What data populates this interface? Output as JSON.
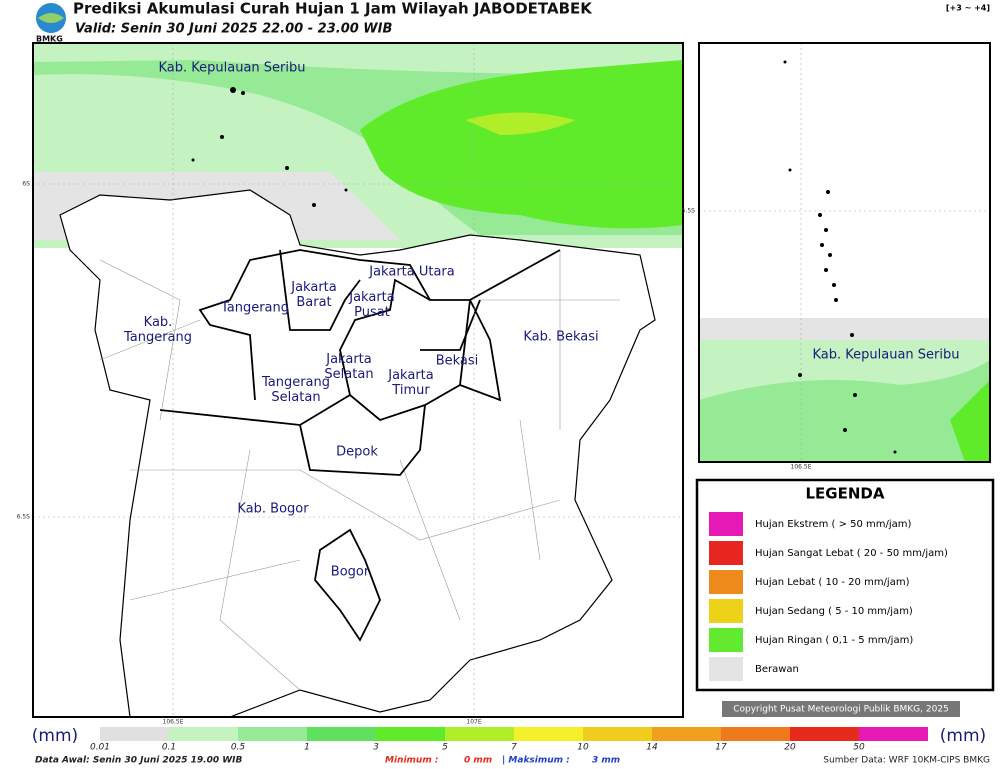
{
  "header": {
    "title": "Prediksi Akumulasi Curah Hujan 1 Jam Wilayah JABODETABEK",
    "subtitle": "Valid: Senin 30 Juni 2025 22.00 - 23.00 WIB",
    "lead_time": "[+3 ~ +4]",
    "logo_text": "BMKG"
  },
  "map": {
    "labels": [
      "Kab. Kepulauan Seribu",
      "Jakarta Utara",
      "Jakarta Barat",
      "Jakarta Pusat",
      "Tangerang",
      "Kab. Tangerang",
      "Jakarta Selatan",
      "Jakarta Timur",
      "Bekasi",
      "Kab. Bekasi",
      "Tangerang Selatan",
      "Depok",
      "Kab. Bogor",
      "Bogor"
    ],
    "axis_labels": [
      "6S",
      "6.5S",
      "106.5E",
      "107E"
    ]
  },
  "inset": {
    "labels": [
      "Kab. Kepulauan Seribu"
    ],
    "axis_labels": [
      "5.5S",
      "106.5E"
    ]
  },
  "legend": {
    "title": "LEGENDA",
    "items": [
      {
        "label": "Hujan Ekstrem ( > 50 mm/jam)",
        "color": "#e619b4"
      },
      {
        "label": "Hujan Sangat Lebat ( 20 - 50 mm/jam)",
        "color": "#e6261f"
      },
      {
        "label": "Hujan Lebat ( 10 - 20 mm/jam)",
        "color": "#ee8a1c"
      },
      {
        "label": "Hujan Sedang ( 5 - 10 mm/jam)",
        "color": "#eed21a"
      },
      {
        "label": "Hujan Ringan ( 0,1 - 5 mm/jam)",
        "color": "#62ea2e"
      },
      {
        "label": "Berawan",
        "color": "#e4e4e4"
      }
    ]
  },
  "copyright": "Copyright Pusat Meteorologi Publik BMKG, 2025",
  "colorbar": {
    "unit_left": "(mm)",
    "unit_right": "(mm)",
    "segments": [
      {
        "label": "0.01",
        "color": "#e0e0e0"
      },
      {
        "label": "0.1",
        "color": "#c4f2c0"
      },
      {
        "label": "0.5",
        "color": "#96ea96"
      },
      {
        "label": "1",
        "color": "#5fe05f"
      },
      {
        "label": "3",
        "color": "#5fea2a"
      },
      {
        "label": "5",
        "color": "#b0ee2a"
      },
      {
        "label": "7",
        "color": "#f4f02a"
      },
      {
        "label": "10",
        "color": "#f0cc1c"
      },
      {
        "label": "14",
        "color": "#f0a01c"
      },
      {
        "label": "17",
        "color": "#ee7a1c"
      },
      {
        "label": "20",
        "color": "#e62a1c"
      },
      {
        "label": "50",
        "color": "#e619b4"
      }
    ]
  },
  "footer": {
    "data_start": "Data Awal: Senin 30 Juni 2025 19.00 WIB",
    "min_label": "Minimum :",
    "min_value": "0 mm",
    "max_label": "| Maksimum :",
    "max_value": "3 mm",
    "source": "Sumber Data: WRF 10KM-CIPS BMKG"
  }
}
